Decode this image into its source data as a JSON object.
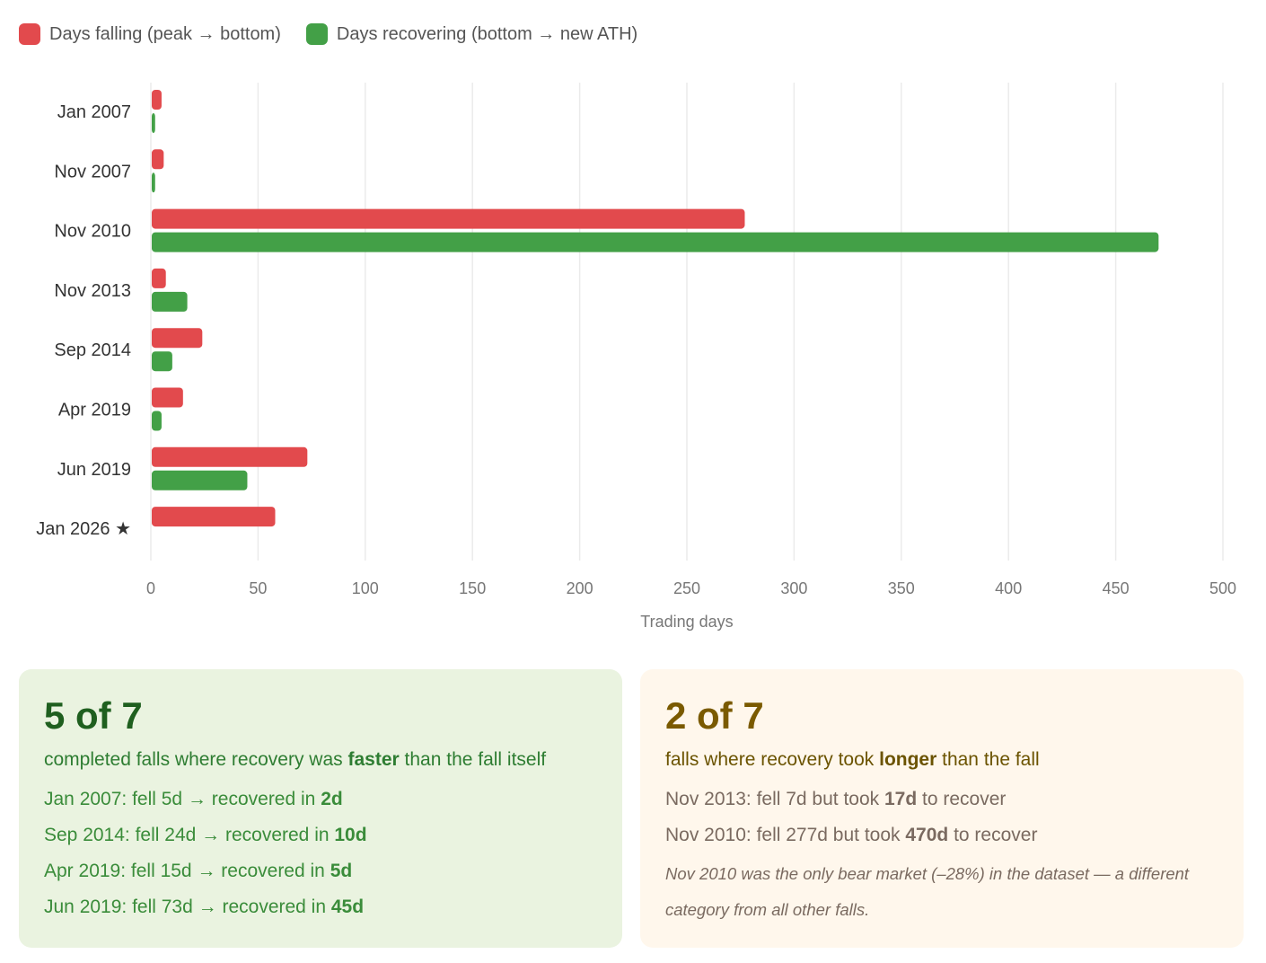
{
  "legend": {
    "falling": "Days falling (peak → bottom)",
    "recovering": "Days recovering (bottom → new ATH)"
  },
  "colors": {
    "falling": "#e24a4d",
    "recovering": "#43a047",
    "grid": "#ebebeb",
    "tick": "#777777",
    "category": "#333333"
  },
  "chart_data": {
    "type": "bar",
    "orientation": "horizontal",
    "categories": [
      "Jan 2007",
      "Nov 2007",
      "Nov 2010",
      "Nov 2013",
      "Sep 2014",
      "Apr 2019",
      "Jun 2019",
      "Jan 2026 ★"
    ],
    "series": [
      {
        "name": "Days falling (peak → bottom)",
        "values": [
          5,
          6,
          277,
          7,
          24,
          15,
          73,
          58
        ]
      },
      {
        "name": "Days recovering (bottom → new ATH)",
        "values": [
          2,
          2,
          470,
          17,
          10,
          5,
          45,
          null
        ]
      }
    ],
    "xlabel": "Trading days",
    "ylabel": "",
    "xlim": [
      0,
      500
    ],
    "xticks": [
      0,
      50,
      100,
      150,
      200,
      250,
      300,
      350,
      400,
      450,
      500
    ],
    "grid": true,
    "legend": "top-left"
  },
  "cards": {
    "faster": {
      "headline": "5 of 7",
      "sub_pre": "completed falls where recovery was ",
      "sub_bold": "faster",
      "sub_post": " than the fall itself",
      "lines": [
        {
          "text": "Jan 2007: fell 5d → recovered in ",
          "bold": "2d"
        },
        {
          "text": "Sep 2014: fell 24d → recovered in ",
          "bold": "10d"
        },
        {
          "text": "Apr 2019: fell 15d → recovered in ",
          "bold": "5d"
        },
        {
          "text": "Jun 2019: fell 73d → recovered in ",
          "bold": "45d"
        }
      ]
    },
    "longer": {
      "headline": "2 of 7",
      "sub_pre": "falls where recovery took ",
      "sub_bold": "longer",
      "sub_post": " than the fall",
      "lines": [
        {
          "text": "Nov 2013: fell 7d but took ",
          "bold": "17d",
          "post": " to recover"
        },
        {
          "text": "Nov 2010: fell 277d but took ",
          "bold": "470d",
          "post": " to recover"
        }
      ],
      "note": "Nov 2010 was the only bear market (–28%) in the dataset — a different category from all other falls."
    }
  }
}
